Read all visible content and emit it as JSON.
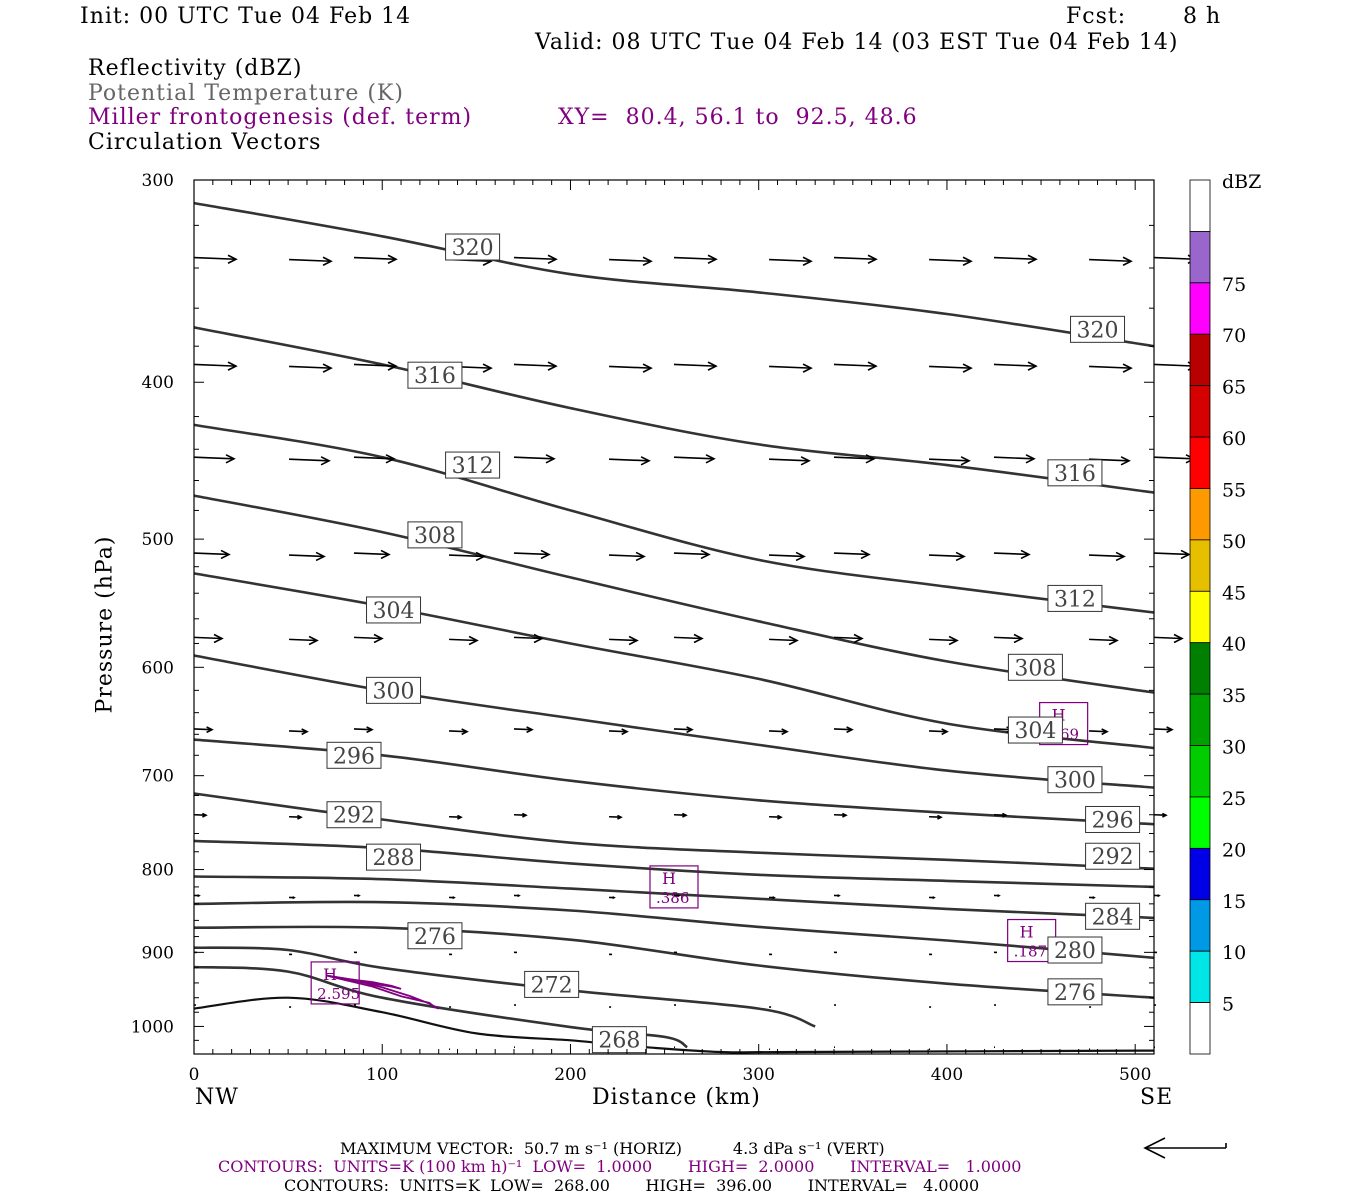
{
  "header": {
    "init": "Init: 00 UTC Tue 04 Feb 14",
    "fcst_label": "Fcst:",
    "fcst_value": "8 h",
    "valid": "Valid: 08 UTC Tue 04 Feb 14 (03 EST Tue 04 Feb 14)"
  },
  "fields": {
    "reflectivity": "Reflectivity (dBZ)",
    "theta": "Potential Temperature (K)",
    "miller": "Miller frontogenesis (def. term)",
    "xy": "XY=  80.4, 56.1 to  92.5, 48.6",
    "vectors": "Circulation Vectors"
  },
  "axes": {
    "xlabel": "Distance (km)",
    "ylabel": "Pressure (hPa)",
    "left_end": "NW",
    "right_end": "SE"
  },
  "footer": {
    "max_vector": "MAXIMUM VECTOR:  50.7 m s⁻¹ (HORIZ)          4.3 dPa s⁻¹ (VERT)",
    "contours_frontogenesis": "CONTOURS:  UNITS=K (100 km h)⁻¹  LOW=  1.0000       HIGH=  2.0000       INTERVAL=   1.0000",
    "contours_theta": "CONTOURS:  UNITS=K  LOW=  268.00       HIGH=  396.00       INTERVAL=   4.0000"
  },
  "colorbar": {
    "unit": "dBZ",
    "levels": [
      "5",
      "10",
      "15",
      "20",
      "25",
      "30",
      "35",
      "40",
      "45",
      "50",
      "55",
      "60",
      "65",
      "70",
      "75"
    ],
    "colors": [
      "#ffffff",
      "#00e5e5",
      "#0099e6",
      "#0000e6",
      "#00ff00",
      "#00cc00",
      "#00a000",
      "#007f00",
      "#ffff00",
      "#e6c000",
      "#ff9900",
      "#ff0000",
      "#d50000",
      "#b80000",
      "#ff00ff",
      "#9966cc",
      "#ffffff"
    ]
  },
  "chart_data": {
    "type": "contour",
    "title": "",
    "xlabel": "Distance (km)",
    "ylabel": "Pressure (hPa)",
    "xlim": [
      0,
      510
    ],
    "ylim": [
      1040,
      300
    ],
    "y_log_scale": true,
    "x_ticks": [
      0,
      100,
      200,
      300,
      400,
      500
    ],
    "y_ticks": [
      300,
      400,
      500,
      600,
      700,
      800,
      900,
      1000
    ],
    "theta_contours": [
      {
        "label": "320",
        "x": [
          0,
          100,
          200,
          300,
          400,
          510
        ],
        "y": [
          310,
          325,
          343,
          352,
          363,
          380
        ],
        "labels_at": [
          [
            148,
            330
          ],
          [
            480,
            371
          ]
        ]
      },
      {
        "label": "316",
        "x": [
          0,
          100,
          200,
          300,
          400,
          510
        ],
        "y": [
          370,
          390,
          415,
          437,
          450,
          468
        ],
        "labels_at": [
          [
            128,
            396
          ],
          [
            468,
            455
          ]
        ]
      },
      {
        "label": "312",
        "x": [
          0,
          100,
          200,
          300,
          400,
          510
        ],
        "y": [
          425,
          445,
          480,
          515,
          535,
          555
        ],
        "labels_at": [
          [
            148,
            450
          ],
          [
            468,
            544
          ]
        ]
      },
      {
        "label": "308",
        "x": [
          0,
          100,
          200,
          300,
          400,
          510
        ],
        "y": [
          470,
          495,
          528,
          562,
          595,
          622
        ],
        "labels_at": [
          [
            128,
            497
          ],
          [
            447,
            600
          ]
        ]
      },
      {
        "label": "304",
        "x": [
          0,
          100,
          200,
          300,
          400,
          510
        ],
        "y": [
          525,
          550,
          580,
          610,
          650,
          673
        ],
        "labels_at": [
          [
            106,
            553
          ],
          [
            447,
            656
          ]
        ]
      },
      {
        "label": "300",
        "x": [
          0,
          100,
          200,
          300,
          400,
          510
        ],
        "y": [
          590,
          620,
          645,
          670,
          695,
          712
        ],
        "labels_at": [
          [
            106,
            620
          ],
          [
            468,
            704
          ]
        ]
      },
      {
        "label": "296",
        "x": [
          0,
          100,
          200,
          300,
          400,
          510
        ],
        "y": [
          665,
          680,
          705,
          725,
          738,
          750
        ],
        "labels_at": [
          [
            85,
            680
          ],
          [
            488,
            745
          ]
        ]
      },
      {
        "label": "292",
        "x": [
          0,
          100,
          200,
          300,
          400,
          510
        ],
        "y": [
          718,
          745,
          770,
          781,
          789,
          799
        ],
        "labels_at": [
          [
            85,
            740
          ],
          [
            488,
            785
          ]
        ]
      },
      {
        "label": "288",
        "x": [
          0,
          100,
          200,
          300,
          400,
          510
        ],
        "y": [
          768,
          776,
          793,
          806,
          813,
          820
        ],
        "labels_at": [
          [
            106,
            786
          ]
        ]
      },
      {
        "label": "284",
        "x": [
          0,
          100,
          200,
          300,
          400,
          510
        ],
        "y": [
          808,
          811,
          822,
          834,
          846,
          857
        ],
        "labels_at": [
          [
            488,
            855
          ]
        ]
      },
      {
        "label": "280",
        "x": [
          0,
          100,
          200,
          300,
          400,
          510
        ],
        "y": [
          840,
          838,
          848,
          868,
          885,
          907
        ],
        "labels_at": [
          [
            468,
            897
          ]
        ]
      },
      {
        "label": "276",
        "x": [
          0,
          100,
          200,
          300,
          400,
          510
        ],
        "y": [
          869,
          869,
          884,
          917,
          941,
          960
        ],
        "labels_at": [
          [
            128,
            879
          ],
          [
            468,
            952
          ]
        ]
      },
      {
        "label": "272",
        "x": [
          0,
          50,
          100,
          200,
          300,
          330
        ],
        "y": [
          894,
          897,
          920,
          950,
          975,
          1000
        ],
        "labels_at": [
          [
            190,
            942
          ]
        ]
      },
      {
        "label": "268",
        "x": [
          0,
          50,
          100,
          200,
          250,
          262
        ],
        "y": [
          919,
          925,
          960,
          1001,
          1015,
          1030
        ],
        "labels_at": [
          [
            226,
            1019
          ]
        ]
      }
    ],
    "surface_boundary": {
      "x": [
        0,
        50,
        100,
        150,
        200,
        240,
        280,
        320,
        510
      ],
      "y": [
        975,
        960,
        980,
        1010,
        1020,
        1030,
        1037,
        1037,
        1035
      ]
    },
    "frontogenesis_maxima": [
      {
        "label": "H",
        "value": "2.595",
        "x": 75,
        "y": 940
      },
      {
        "label": "H",
        "value": ".386",
        "x": 255,
        "y": 820
      },
      {
        "label": "H",
        "value": ".187",
        "x": 445,
        "y": 885
      },
      {
        "label": "H",
        "value": ".169",
        "x": 462,
        "y": 650
      }
    ],
    "frontogenesis_contours": [
      {
        "level": 1.0,
        "x": [
          70,
          80,
          95,
          110,
          125,
          128,
          130,
          125,
          115,
          100,
          85,
          70
        ],
        "y": [
          930,
          936,
          945,
          958,
          967,
          973,
          975,
          968,
          958,
          946,
          936,
          930
        ]
      },
      {
        "level": 2.0,
        "x": [
          72,
          82,
          95,
          105,
          110,
          105,
          95,
          82,
          72
        ],
        "y": [
          931,
          935,
          939,
          944,
          948,
          945,
          941,
          937,
          931
        ]
      }
    ],
    "vector_scale": {
      "horizontal": "50.7 m s⁻¹",
      "vertical": "4.3 dPa s⁻¹"
    },
    "vector_rows": [
      {
        "p": 335,
        "len": 42
      },
      {
        "p": 390,
        "len": 42
      },
      {
        "p": 445,
        "len": 40
      },
      {
        "p": 510,
        "len": 35
      },
      {
        "p": 575,
        "len": 28
      },
      {
        "p": 655,
        "len": 18
      },
      {
        "p": 740,
        "len": 12
      },
      {
        "p": 830,
        "len": 5
      },
      {
        "p": 900,
        "len": 3
      },
      {
        "p": 970,
        "len": 2
      },
      {
        "p": 1030,
        "len": 1
      }
    ]
  }
}
